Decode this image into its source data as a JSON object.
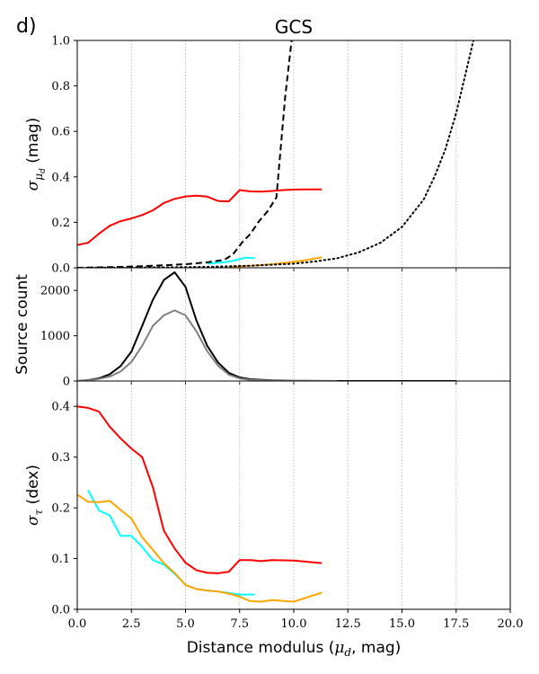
{
  "panel_label": "d)",
  "chart_data": {
    "type": "line",
    "title": "GCS",
    "xlabel": {
      "prefix": "Distance modulus (",
      "symbol": "μ",
      "sub": "d",
      "suffix": ", mag)"
    },
    "xlim": [
      0,
      20
    ],
    "x_ticks": [
      0.0,
      2.5,
      5.0,
      7.5,
      10.0,
      12.5,
      15.0,
      17.5,
      20.0
    ],
    "x_tick_labels": [
      "0.0",
      "2.5",
      "5.0",
      "7.5",
      "10.0",
      "12.5",
      "15.0",
      "17.5",
      "20.0"
    ],
    "vertical_gridlines": [
      2.5,
      5.0,
      7.5,
      10.0,
      12.5,
      15.0,
      17.5
    ],
    "colors": {
      "red": "#ff0000",
      "cyan": "#00ffff",
      "orange": "#ffa500",
      "black": "#000000",
      "gray": "#808080",
      "grid": "#b0b0b0"
    },
    "panels": [
      {
        "id": "sigma-mu",
        "ylabel": {
          "symbol": "σ",
          "sub": "μ",
          "subsub": "d",
          "suffix": " (mag)"
        },
        "ylim": [
          0,
          1.0
        ],
        "y_ticks": [
          0.0,
          0.2,
          0.4,
          0.6,
          0.8,
          1.0
        ],
        "y_tick_labels": [
          "0.0",
          "0.2",
          "0.4",
          "0.6",
          "0.8",
          "1.0"
        ],
        "series": [
          {
            "name": "red",
            "color": "#ff0000",
            "style": "solid",
            "x": [
              0,
              0.5,
              1,
              1.5,
              2,
              2.5,
              3,
              3.5,
              4,
              4.5,
              5,
              5.5,
              6,
              6.5,
              7,
              7.5,
              8,
              8.5,
              9,
              9.5,
              10,
              10.5,
              11,
              11.3
            ],
            "y": [
              0.1,
              0.11,
              0.15,
              0.185,
              0.205,
              0.217,
              0.232,
              0.253,
              0.285,
              0.303,
              0.314,
              0.317,
              0.313,
              0.294,
              0.292,
              0.342,
              0.336,
              0.335,
              0.338,
              0.342,
              0.344,
              0.345,
              0.345,
              0.345
            ]
          },
          {
            "name": "cyan",
            "color": "#00ffff",
            "style": "solid",
            "x": [
              6.0,
              6.5,
              7.0,
              7.5,
              7.8,
              8.2
            ],
            "y": [
              0.018,
              0.022,
              0.027,
              0.038,
              0.045,
              0.042
            ]
          },
          {
            "name": "orange",
            "color": "#ffa500",
            "style": "solid",
            "x": [
              7.0,
              8,
              9,
              10,
              10.5,
              11,
              11.3
            ],
            "y": [
              0.004,
              0.009,
              0.016,
              0.026,
              0.033,
              0.041,
              0.046
            ]
          },
          {
            "name": "black-dashed",
            "color": "#000000",
            "style": "dashed",
            "x": [
              0,
              1,
              2,
              3,
              4,
              5,
              6,
              6.8,
              7.2,
              7.6,
              8.0,
              8.4,
              8.8,
              9.2,
              9.6,
              9.9
            ],
            "y": [
              0.0,
              0.002,
              0.004,
              0.007,
              0.011,
              0.016,
              0.024,
              0.035,
              0.06,
              0.11,
              0.15,
              0.205,
              0.25,
              0.31,
              0.75,
              1.0
            ]
          },
          {
            "name": "black-dotted",
            "color": "#000000",
            "style": "dotted",
            "x": [
              0,
              2,
              4,
              6,
              8,
              10,
              11,
              12,
              13,
              14,
              15,
              16,
              16.5,
              17,
              17.5,
              18,
              18.3
            ],
            "y": [
              0.0,
              0.001,
              0.002,
              0.004,
              0.009,
              0.018,
              0.028,
              0.042,
              0.068,
              0.11,
              0.18,
              0.3,
              0.4,
              0.52,
              0.68,
              0.88,
              1.0
            ]
          }
        ]
      },
      {
        "id": "source-count",
        "ylabel": {
          "text": "Source count"
        },
        "ylim": [
          0,
          2500
        ],
        "y_ticks": [
          0,
          1000,
          2000
        ],
        "y_tick_labels": [
          "0",
          "1000",
          "2000"
        ],
        "series": [
          {
            "name": "black",
            "color": "#000000",
            "style": "solid",
            "x": [
              0.0,
              0.5,
              1.0,
              1.5,
              2.0,
              2.5,
              3.0,
              3.5,
              4.0,
              4.5,
              5.0,
              5.5,
              6.0,
              6.5,
              7.0,
              7.5,
              8.0,
              9.0,
              10.0,
              11.0,
              12.0,
              13.0,
              15.0,
              17.5
            ],
            "y": [
              0,
              20,
              60,
              150,
              330,
              650,
              1220,
              1800,
              2230,
              2400,
              2080,
              1340,
              780,
              410,
              180,
              80,
              40,
              15,
              5,
              2,
              0,
              0,
              0,
              0
            ]
          },
          {
            "name": "gray",
            "color": "#808080",
            "style": "solid",
            "x": [
              0.0,
              0.5,
              1.0,
              1.5,
              2.0,
              2.5,
              3.0,
              3.5,
              4.0,
              4.5,
              5.0,
              5.5,
              6.0,
              6.5,
              7.0,
              7.5,
              8.0,
              9.0,
              10.0,
              11.0,
              12.0
            ],
            "y": [
              0,
              15,
              45,
              100,
              210,
              420,
              780,
              1220,
              1450,
              1560,
              1450,
              1100,
              660,
              340,
              140,
              55,
              25,
              8,
              3,
              1,
              0
            ]
          }
        ]
      },
      {
        "id": "sigma-tau",
        "ylabel": {
          "symbol": "σ",
          "sub": "τ",
          "suffix": " (dex)"
        },
        "ylim": [
          0,
          0.45
        ],
        "y_ticks": [
          0.0,
          0.1,
          0.2,
          0.3,
          0.4
        ],
        "y_tick_labels": [
          "0.0",
          "0.1",
          "0.2",
          "0.3",
          "0.4"
        ],
        "series": [
          {
            "name": "red",
            "color": "#ff0000",
            "style": "solid",
            "x": [
              0.0,
              0.5,
              1.0,
              1.5,
              2.0,
              2.5,
              3.0,
              3.5,
              4.0,
              4.5,
              5.0,
              5.5,
              6.0,
              6.5,
              7.0,
              7.5,
              8.0,
              8.5,
              9.0,
              10.0,
              11.3
            ],
            "y": [
              0.4,
              0.397,
              0.39,
              0.36,
              0.337,
              0.317,
              0.3,
              0.24,
              0.155,
              0.12,
              0.092,
              0.077,
              0.072,
              0.071,
              0.074,
              0.097,
              0.097,
              0.095,
              0.097,
              0.096,
              0.091
            ]
          },
          {
            "name": "cyan",
            "color": "#00ffff",
            "style": "solid",
            "x": [
              0.5,
              1.0,
              1.5,
              2.0,
              2.5,
              3.0,
              3.5,
              4.0,
              4.5,
              5.0,
              5.5,
              6.0,
              6.5,
              7.0,
              7.5,
              8.0,
              8.2
            ],
            "y": [
              0.235,
              0.195,
              0.185,
              0.145,
              0.145,
              0.123,
              0.097,
              0.088,
              0.07,
              0.048,
              0.04,
              0.037,
              0.035,
              0.032,
              0.029,
              0.029,
              0.029
            ]
          },
          {
            "name": "orange",
            "color": "#ffa500",
            "style": "solid",
            "x": [
              0.0,
              0.5,
              1.0,
              1.5,
              2.0,
              2.5,
              3.0,
              3.5,
              4.0,
              4.5,
              5.0,
              5.5,
              6.0,
              6.5,
              7.0,
              7.5,
              8.0,
              8.5,
              9.0,
              10.0,
              11.3
            ],
            "y": [
              0.226,
              0.212,
              0.211,
              0.214,
              0.196,
              0.179,
              0.142,
              0.117,
              0.091,
              0.072,
              0.048,
              0.04,
              0.037,
              0.035,
              0.031,
              0.025,
              0.016,
              0.015,
              0.018,
              0.015,
              0.033
            ]
          }
        ]
      }
    ]
  }
}
